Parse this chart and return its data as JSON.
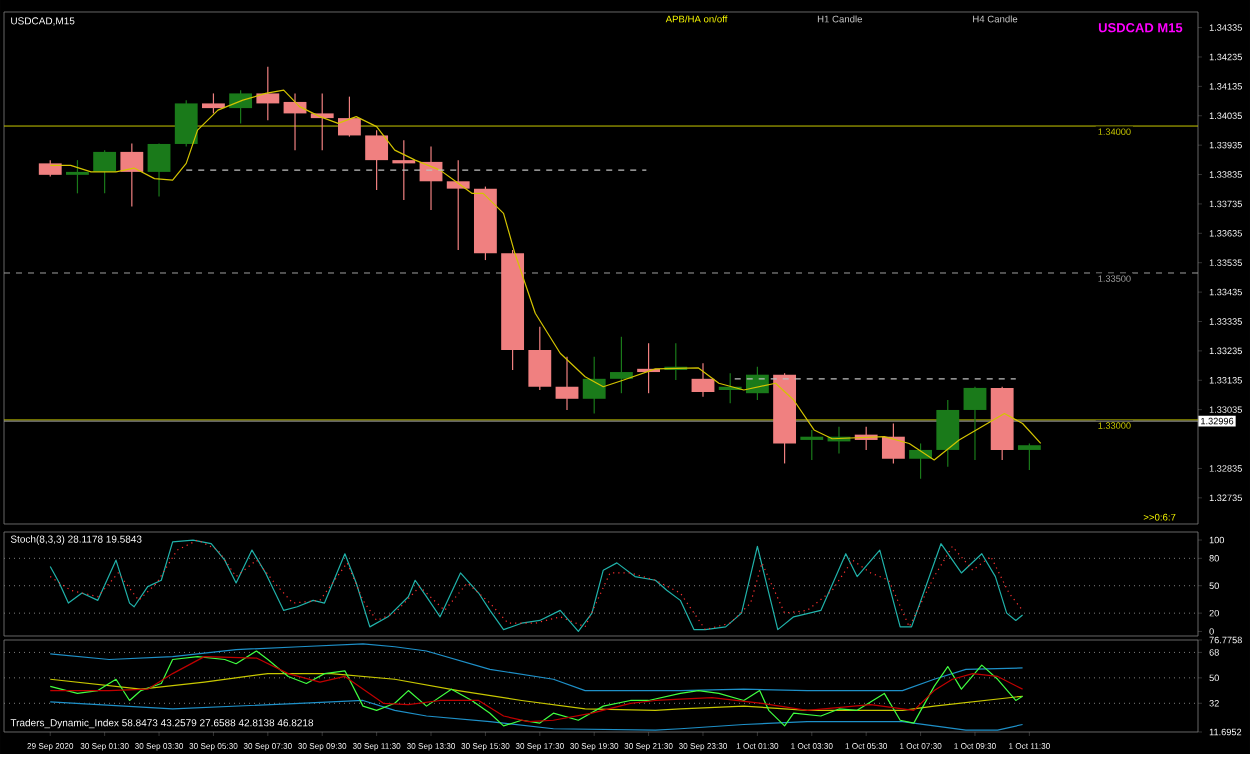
{
  "chart_data": [
    {
      "type": "candlestick",
      "title": "USDCAD,M15",
      "subtitle": "USDCAD M15",
      "annotations": [
        "APB/HA on/off",
        "H1 Candle",
        "H4 Candle",
        ">>0:6:7"
      ],
      "x": [
        "2020-09-29T23:30",
        "2020-09-30T00:30",
        "2020-09-30T01:30",
        "2020-09-30T02:30",
        "2020-09-30T03:30",
        "2020-09-30T04:30",
        "2020-09-30T05:30",
        "2020-09-30T06:30",
        "2020-09-30T07:30",
        "2020-09-30T08:30",
        "2020-09-30T09:30",
        "2020-09-30T10:30",
        "2020-09-30T11:30",
        "2020-09-30T12:30",
        "2020-09-30T13:30",
        "2020-09-30T14:30",
        "2020-09-30T15:30",
        "2020-09-30T16:30",
        "2020-09-30T17:30",
        "2020-09-30T18:30",
        "2020-09-30T19:30",
        "2020-09-30T20:30",
        "2020-09-30T21:30",
        "2020-09-30T22:30",
        "2020-09-30T23:30",
        "2020-10-01T00:30",
        "2020-10-01T01:30",
        "2020-10-01T02:30",
        "2020-10-01T03:30",
        "2020-10-01T04:30",
        "2020-10-01T05:30",
        "2020-10-01T06:30",
        "2020-10-01T07:30",
        "2020-10-01T08:30",
        "2020-10-01T09:30",
        "2020-10-01T10:30",
        "2020-10-01T11:30"
      ],
      "ohlc": [
        [
          1.33873,
          1.33884,
          1.33828,
          1.33834
        ],
        [
          1.33834,
          1.33884,
          1.33771,
          1.33844
        ],
        [
          1.33844,
          1.33918,
          1.33771,
          1.33912
        ],
        [
          1.33912,
          1.33941,
          1.33726,
          1.33844
        ],
        [
          1.33844,
          1.33941,
          1.3376,
          1.33939
        ],
        [
          1.33939,
          1.34088,
          1.3393,
          1.34077
        ],
        [
          1.34077,
          1.34111,
          1.34043,
          1.34061
        ],
        [
          1.34061,
          1.34122,
          1.34009,
          1.34111
        ],
        [
          1.34111,
          1.34202,
          1.3402,
          1.34077
        ],
        [
          1.34082,
          1.34111,
          1.33918,
          1.34043
        ],
        [
          1.34043,
          1.34111,
          1.33918,
          1.34027
        ],
        [
          1.34027,
          1.341,
          1.33964,
          1.33968
        ],
        [
          1.33968,
          1.33986,
          1.33782,
          1.33884
        ],
        [
          1.33884,
          1.33952,
          1.33748,
          1.33873
        ],
        [
          1.33878,
          1.3393,
          1.33714,
          1.33812
        ],
        [
          1.33812,
          1.33884,
          1.33578,
          1.33787
        ],
        [
          1.33787,
          1.33794,
          1.33544,
          1.33567
        ],
        [
          1.33567,
          1.33578,
          1.3317,
          1.33238
        ],
        [
          1.33238,
          1.33317,
          1.33102,
          1.33113
        ],
        [
          1.33113,
          1.33215,
          1.33034,
          1.33072
        ],
        [
          1.33072,
          1.33215,
          1.33022,
          1.3314
        ],
        [
          1.3314,
          1.33283,
          1.33091,
          1.33163
        ],
        [
          1.33174,
          1.33261,
          1.33091,
          1.33163
        ],
        [
          1.3317,
          1.33261,
          1.33136,
          1.33181
        ],
        [
          1.3314,
          1.33193,
          1.33079,
          1.33095
        ],
        [
          1.33102,
          1.33159,
          1.33057,
          1.33113
        ],
        [
          1.33091,
          1.33181,
          1.33068,
          1.33154
        ],
        [
          1.33154,
          1.33159,
          1.32852,
          1.3292
        ],
        [
          1.32932,
          1.32966,
          1.32864,
          1.32943
        ],
        [
          1.32927,
          1.32977,
          1.32886,
          1.32943
        ],
        [
          1.3295,
          1.32977,
          1.32898,
          1.32932
        ],
        [
          1.32943,
          1.32988,
          1.32852,
          1.32868
        ],
        [
          1.32868,
          1.3292,
          1.328,
          1.32898
        ],
        [
          1.32898,
          1.33068,
          1.32841,
          1.33034
        ],
        [
          1.33034,
          1.33113,
          1.32864,
          1.33109
        ],
        [
          1.33109,
          1.33113,
          1.32864,
          1.32898
        ],
        [
          1.32898,
          1.3292,
          1.3283,
          1.32914
        ]
      ],
      "colors": [
        "#f08080",
        "#1a7a1a",
        "#1a7a1a",
        "#f08080",
        "#1a7a1a",
        "#1a7a1a",
        "#f08080",
        "#1a7a1a",
        "#f08080",
        "#f08080",
        "#f08080",
        "#f08080",
        "#f08080",
        "#f08080",
        "#f08080",
        "#f08080",
        "#f08080",
        "#f08080",
        "#f08080",
        "#f08080",
        "#1a7a1a",
        "#1a7a1a",
        "#f08080",
        "#1a7a1a",
        "#f08080",
        "#1a7a1a",
        "#1a7a1a",
        "#f08080",
        "#1a7a1a",
        "#1a7a1a",
        "#f08080",
        "#f08080",
        "#1a7a1a",
        "#1a7a1a",
        "#1a7a1a",
        "#f08080",
        "#1a7a1a"
      ],
      "series": [
        {
          "type": "line",
          "color": "#d4c400",
          "x": [
            "2020-09-29T23:30",
            "2020-09-30T00:15",
            "2020-09-30T01:00",
            "2020-09-30T01:55",
            "2020-09-30T02:35",
            "2020-09-30T03:20",
            "2020-09-30T04:00",
            "2020-09-30T04:30",
            "2020-09-30T04:55",
            "2020-09-30T05:40",
            "2020-09-30T06:35",
            "2020-09-30T07:25",
            "2020-09-30T08:05",
            "2020-09-30T08:40",
            "2020-09-30T09:25",
            "2020-09-30T10:05",
            "2020-09-30T10:45",
            "2020-09-30T11:30",
            "2020-09-30T12:10",
            "2020-09-30T12:55",
            "2020-09-30T13:50",
            "2020-09-30T14:30",
            "2020-09-30T15:00",
            "2020-09-30T15:25",
            "2020-09-30T16:10",
            "2020-09-30T16:35",
            "2020-09-30T17:20",
            "2020-09-30T18:15",
            "2020-09-30T19:10",
            "2020-09-30T19:50",
            "2020-09-30T20:35",
            "2020-09-30T21:45",
            "2020-09-30T23:20",
            "2020-10-01T00:05",
            "2020-10-01T01:00",
            "2020-10-01T02:10",
            "2020-10-01T02:50",
            "2020-10-01T03:35",
            "2020-10-01T04:15",
            "2020-10-01T06:10",
            "2020-10-01T07:05",
            "2020-10-01T08:00",
            "2020-10-01T08:55",
            "2020-10-01T09:45",
            "2020-10-01T10:35",
            "2020-10-01T11:15",
            "2020-10-01T11:55"
          ],
          "values": [
            1.33866,
            1.33866,
            1.33844,
            1.33844,
            1.33857,
            1.33821,
            1.33816,
            1.33873,
            1.33986,
            1.34054,
            1.34088,
            1.34111,
            1.34122,
            1.34066,
            1.34032,
            1.34009,
            1.34032,
            1.33998,
            1.33918,
            1.33884,
            1.3385,
            1.33805,
            1.33771,
            1.33771,
            1.33703,
            1.33567,
            1.33363,
            1.33227,
            1.33147,
            1.33113,
            1.33136,
            1.33174,
            1.33177,
            1.33125,
            1.33102,
            1.33125,
            1.33068,
            1.32966,
            1.32936,
            1.32943,
            1.3292,
            1.32864,
            1.32932,
            1.32977,
            1.33022,
            1.32988,
            1.3292
          ]
        },
        {
          "type": "line",
          "color": "#c0c0c0",
          "line_style": "dashed",
          "x": [
            "2020-09-30T04:30",
            "2020-09-30T21:25"
          ],
          "values": [
            1.3385,
            1.3385
          ]
        },
        {
          "type": "line",
          "color": "#c0c0c0",
          "line_style": "dashed",
          "x": [
            "2020-10-01T00:40",
            "2020-10-01T11:00"
          ],
          "values": [
            1.3314,
            1.3314
          ]
        }
      ],
      "xlim": [
        "2020-09-29T21:48",
        "2020-10-01T17:42"
      ],
      "ylim": [
        1.32646,
        1.34388
      ],
      "yticks": [
        1.34335,
        1.34235,
        1.34135,
        1.34035,
        1.33935,
        1.33835,
        1.33735,
        1.33635,
        1.33535,
        1.33435,
        1.33335,
        1.33235,
        1.33135,
        1.33035,
        1.32835,
        1.32735
      ],
      "ref_lines": [
        {
          "axis": "y",
          "value": 1.34,
          "label": "1.34000",
          "color": "#c8c800"
        },
        {
          "axis": "y",
          "value": 1.335,
          "label": "1.33500",
          "color": "#a0a0a0",
          "line_style": "dashed"
        },
        {
          "axis": "y",
          "value": 1.33,
          "label": "1.33000",
          "color": "#c8c800"
        },
        {
          "axis": "y",
          "value": 1.32996,
          "label": "1.32996",
          "color": "#a0a0a0"
        }
      ],
      "tick_labels": "y"
    },
    {
      "type": "line",
      "title": "Stoch(8,3,3) 28.1178 19.5843",
      "series": [
        {
          "color": "#20b2aa",
          "x": [
            "2020-09-29T23:30",
            "2020-09-29T23:50",
            "2020-09-30T00:10",
            "2020-09-30T00:40",
            "2020-09-30T01:15",
            "2020-09-30T01:55",
            "2020-09-30T02:25",
            "2020-09-30T02:35",
            "2020-09-30T03:05",
            "2020-09-30T03:35",
            "2020-09-30T04:00",
            "2020-09-30T04:45",
            "2020-09-30T05:25",
            "2020-09-30T05:55",
            "2020-09-30T06:20",
            "2020-09-30T06:55",
            "2020-09-30T07:25",
            "2020-09-30T08:05",
            "2020-09-30T08:35",
            "2020-09-30T09:10",
            "2020-09-30T09:35",
            "2020-09-30T10:20",
            "2020-09-30T10:45",
            "2020-09-30T11:15",
            "2020-09-30T11:55",
            "2020-09-30T12:40",
            "2020-09-30T12:55",
            "2020-09-30T13:20",
            "2020-09-30T13:50",
            "2020-09-30T14:35",
            "2020-09-30T15:15",
            "2020-09-30T15:40",
            "2020-09-30T16:10",
            "2020-09-30T16:50",
            "2020-09-30T17:30",
            "2020-09-30T18:15",
            "2020-09-30T18:55",
            "2020-09-30T19:25",
            "2020-09-30T19:50",
            "2020-09-30T20:20",
            "2020-09-30T21:00",
            "2020-09-30T21:45",
            "2020-09-30T22:10",
            "2020-09-30T22:40",
            "2020-09-30T23:10",
            "2020-09-30T23:35",
            "2020-10-01T00:20",
            "2020-10-01T00:55",
            "2020-10-01T01:30",
            "2020-10-01T02:15",
            "2020-10-01T02:50",
            "2020-10-01T03:50",
            "2020-10-01T04:45",
            "2020-10-01T05:10",
            "2020-10-01T06:00",
            "2020-10-01T06:45",
            "2020-10-01T07:10",
            "2020-10-01T08:15",
            "2020-10-01T09:00",
            "2020-10-01T09:45",
            "2020-10-01T10:15",
            "2020-10-01T10:40",
            "2020-10-01T11:00",
            "2020-10-01T11:15"
          ],
          "values": [
            71,
            53,
            31,
            42,
            34,
            78,
            31,
            27,
            49,
            56,
            98,
            100,
            96,
            78,
            53,
            89,
            64,
            23,
            27,
            34,
            31,
            85,
            53,
            5,
            16,
            38,
            56,
            38,
            16,
            64,
            42,
            23,
            2,
            9,
            12,
            23,
            0,
            20,
            67,
            75,
            60,
            56,
            45,
            34,
            2,
            2,
            5,
            20,
            93,
            2,
            16,
            23,
            85,
            60,
            89,
            5,
            5,
            96,
            64,
            85,
            60,
            20,
            12,
            18
          ]
        },
        {
          "color": "#ff3030",
          "line_style": "dotted",
          "x": [
            "2020-09-29T23:30",
            "2020-09-30T00:15",
            "2020-09-30T01:15",
            "2020-09-30T02:00",
            "2020-09-30T02:45",
            "2020-09-30T03:25",
            "2020-09-30T04:10",
            "2020-09-30T04:55",
            "2020-09-30T05:40",
            "2020-09-30T06:20",
            "2020-09-30T07:05",
            "2020-09-30T07:45",
            "2020-09-30T08:25",
            "2020-09-30T09:25",
            "2020-09-30T10:25",
            "2020-09-30T11:00",
            "2020-09-30T11:30",
            "2020-09-30T12:10",
            "2020-09-30T13:05",
            "2020-09-30T14:00",
            "2020-09-30T14:50",
            "2020-09-30T15:40",
            "2020-09-30T16:20",
            "2020-09-30T17:20",
            "2020-09-30T18:15",
            "2020-09-30T19:10",
            "2020-09-30T20:05",
            "2020-09-30T20:50",
            "2020-09-30T21:45",
            "2020-09-30T22:40",
            "2020-09-30T23:35",
            "2020-10-01T00:30",
            "2020-10-01T01:15",
            "2020-10-01T01:40",
            "2020-10-01T02:30",
            "2020-10-01T03:20",
            "2020-10-01T04:15",
            "2020-10-01T05:00",
            "2020-10-01T05:40",
            "2020-10-01T06:20",
            "2020-10-01T07:05",
            "2020-10-01T08:00",
            "2020-10-01T08:40",
            "2020-10-01T09:25",
            "2020-10-01T10:05",
            "2020-10-01T10:45",
            "2020-10-01T11:15"
          ],
          "values": [
            60,
            45,
            38,
            64,
            34,
            53,
            89,
            100,
            89,
            60,
            78,
            53,
            31,
            34,
            75,
            34,
            12,
            20,
            49,
            23,
            53,
            31,
            9,
            9,
            16,
            5,
            64,
            64,
            56,
            42,
            2,
            9,
            31,
            75,
            20,
            23,
            45,
            78,
            64,
            56,
            5,
            60,
            93,
            67,
            82,
            42,
            23
          ]
        }
      ],
      "xlim": [
        "2020-09-29T21:48",
        "2020-10-01T17:42"
      ],
      "ylim": [
        -5,
        108.8
      ],
      "yticks": [
        0,
        20,
        50,
        80,
        100
      ],
      "ref_lines": [
        {
          "axis": "y",
          "value": 80,
          "color": "#808080",
          "line_style": "dotted"
        },
        {
          "axis": "y",
          "value": 50,
          "color": "#808080",
          "line_style": "dotted"
        },
        {
          "axis": "y",
          "value": 20,
          "color": "#808080",
          "line_style": "dotted"
        }
      ],
      "tick_labels": "y"
    },
    {
      "type": "line",
      "title": "Traders_Dynamic_Index 58.8473 43.2579 27.6588 42.8138 46.8218",
      "series": [
        {
          "color": "#1e90c8",
          "x": [
            "2020-09-29T23:30",
            "2020-09-30T01:40",
            "2020-09-30T04:00",
            "2020-09-30T06:20",
            "2020-09-30T08:40",
            "2020-09-30T11:00",
            "2020-09-30T12:10",
            "2020-09-30T13:20",
            "2020-09-30T15:40",
            "2020-09-30T18:00",
            "2020-09-30T19:10",
            "2020-09-30T21:45",
            "2020-09-30T22:40",
            "2020-10-01T01:00",
            "2020-10-01T03:20",
            "2020-10-01T06:50",
            "2020-10-01T08:00",
            "2020-10-01T09:10",
            "2020-10-01T11:15"
          ],
          "values": [
            67,
            63,
            65,
            70,
            72,
            74,
            72,
            69,
            56,
            49,
            41,
            41,
            41,
            42,
            41,
            41,
            49,
            56,
            57
          ]
        },
        {
          "color": "#1e90c8",
          "x": [
            "2020-09-29T23:30",
            "2020-09-30T04:00",
            "2020-09-30T08:40",
            "2020-09-30T11:00",
            "2020-09-30T12:10",
            "2020-09-30T13:20",
            "2020-09-30T15:40",
            "2020-09-30T18:00",
            "2020-09-30T21:45",
            "2020-09-30T22:40",
            "2020-10-01T01:00",
            "2020-10-01T03:20",
            "2020-10-01T06:50",
            "2020-10-01T09:10",
            "2020-10-01T10:20",
            "2020-10-01T11:15"
          ],
          "values": [
            33,
            28,
            32,
            34,
            27,
            23,
            19,
            14,
            13,
            14,
            17,
            19,
            19,
            13,
            13,
            17
          ]
        },
        {
          "color": "#c8c800",
          "x": [
            "2020-09-29T23:30",
            "2020-09-30T02:50",
            "2020-09-30T05:10",
            "2020-09-30T07:30",
            "2020-09-30T09:50",
            "2020-09-30T12:10",
            "2020-09-30T14:30",
            "2020-09-30T16:50",
            "2020-09-30T19:10",
            "2020-09-30T21:45",
            "2020-09-30T22:40",
            "2020-10-01T01:00",
            "2020-10-01T03:20",
            "2020-10-01T06:50",
            "2020-10-01T08:00",
            "2020-10-01T11:15"
          ],
          "values": [
            49,
            42,
            47,
            53,
            53,
            49,
            41,
            34,
            28,
            27,
            28,
            30,
            27,
            27,
            30,
            37
          ]
        },
        {
          "color": "#40ff40",
          "x": [
            "2020-09-29T23:30",
            "2020-09-30T00:30",
            "2020-09-30T01:15",
            "2020-09-30T01:55",
            "2020-09-30T02:25",
            "2020-09-30T02:50",
            "2020-09-30T03:35",
            "2020-09-30T04:00",
            "2020-09-30T04:55",
            "2020-09-30T05:55",
            "2020-09-30T06:20",
            "2020-09-30T07:05",
            "2020-09-30T07:30",
            "2020-09-30T08:15",
            "2020-09-30T08:55",
            "2020-09-30T09:35",
            "2020-09-30T10:20",
            "2020-09-30T11:00",
            "2020-09-30T11:30",
            "2020-09-30T12:10",
            "2020-09-30T12:40",
            "2020-09-30T13:20",
            "2020-09-30T14:15",
            "2020-09-30T15:00",
            "2020-09-30T15:40",
            "2020-09-30T16:10",
            "2020-09-30T16:50",
            "2020-09-30T17:30",
            "2020-09-30T18:00",
            "2020-09-30T18:55",
            "2020-09-30T19:50",
            "2020-09-30T20:50",
            "2020-09-30T21:30",
            "2020-09-30T22:40",
            "2020-09-30T23:20",
            "2020-10-01T00:05",
            "2020-10-01T01:00",
            "2020-10-01T01:35",
            "2020-10-01T01:55",
            "2020-10-01T02:30",
            "2020-10-01T02:50",
            "2020-10-01T03:50",
            "2020-10-01T04:30",
            "2020-10-01T05:10",
            "2020-10-01T06:10",
            "2020-10-01T06:45",
            "2020-10-01T07:15",
            "2020-10-01T08:00",
            "2020-10-01T08:30",
            "2020-10-01T09:00",
            "2020-10-01T09:45",
            "2020-10-01T10:20",
            "2020-10-01T11:00",
            "2020-10-01T11:15"
          ],
          "values": [
            44,
            39,
            41,
            49,
            34,
            41,
            46,
            63,
            65,
            63,
            60,
            69,
            63,
            51,
            46,
            53,
            55,
            30,
            27,
            32,
            41,
            30,
            42,
            34,
            25,
            16,
            20,
            18,
            25,
            20,
            30,
            34,
            34,
            39,
            41,
            39,
            34,
            41,
            27,
            16,
            25,
            23,
            28,
            27,
            39,
            20,
            18,
            44,
            58,
            42,
            59,
            49,
            34,
            37
          ]
        },
        {
          "color": "#c00000",
          "x": [
            "2020-09-29T23:30",
            "2020-09-30T01:40",
            "2020-09-30T03:05",
            "2020-09-30T04:00",
            "2020-09-30T05:10",
            "2020-09-30T07:05",
            "2020-09-30T08:15",
            "2020-09-30T09:25",
            "2020-09-30T10:20",
            "2020-09-30T11:45",
            "2020-09-30T12:40",
            "2020-09-30T13:50",
            "2020-09-30T15:15",
            "2020-09-30T16:10",
            "2020-09-30T17:05",
            "2020-09-30T18:00",
            "2020-09-30T19:25",
            "2020-09-30T20:50",
            "2020-09-30T21:45",
            "2020-09-30T22:40",
            "2020-09-30T23:50",
            "2020-10-01T01:40",
            "2020-10-01T03:20",
            "2020-10-01T05:40",
            "2020-10-01T07:15",
            "2020-10-01T08:00",
            "2020-10-01T08:40",
            "2020-10-01T09:25",
            "2020-10-01T10:20",
            "2020-10-01T11:15"
          ],
          "values": [
            41,
            41,
            42,
            53,
            65,
            64,
            53,
            47,
            51,
            32,
            31,
            34,
            34,
            23,
            19,
            20,
            25,
            32,
            34,
            35,
            36,
            32,
            27,
            31,
            27,
            41,
            49,
            53,
            51,
            42
          ]
        }
      ],
      "xlim": [
        "2020-09-29T21:48",
        "2020-10-01T17:42"
      ],
      "ylim": [
        11.6952,
        76.7758
      ],
      "yticks": [
        11.6952,
        32,
        50,
        68,
        76.7758
      ],
      "xticks": [
        {
          "value": "2020-09-29T23:30",
          "label": "29 Sep 2020"
        },
        {
          "value": "2020-09-30T01:30",
          "label": "30 Sep 01:30"
        },
        {
          "value": "2020-09-30T03:30",
          "label": "30 Sep 03:30"
        },
        {
          "value": "2020-09-30T05:30",
          "label": "30 Sep 05:30"
        },
        {
          "value": "2020-09-30T07:30",
          "label": "30 Sep 07:30"
        },
        {
          "value": "2020-09-30T09:30",
          "label": "30 Sep 09:30"
        },
        {
          "value": "2020-09-30T11:30",
          "label": "30 Sep 11:30"
        },
        {
          "value": "2020-09-30T13:30",
          "label": "30 Sep 13:30"
        },
        {
          "value": "2020-09-30T15:30",
          "label": "30 Sep 15:30"
        },
        {
          "value": "2020-09-30T17:30",
          "label": "30 Sep 17:30"
        },
        {
          "value": "2020-09-30T19:30",
          "label": "30 Sep 19:30"
        },
        {
          "value": "2020-09-30T21:30",
          "label": "30 Sep 21:30"
        },
        {
          "value": "2020-09-30T23:30",
          "label": "30 Sep 23:30"
        },
        {
          "value": "2020-10-01T01:30",
          "label": "1 Oct 01:30"
        },
        {
          "value": "2020-10-01T03:30",
          "label": "1 Oct 03:30"
        },
        {
          "value": "2020-10-01T05:30",
          "label": "1 Oct 05:30"
        },
        {
          "value": "2020-10-01T07:30",
          "label": "1 Oct 07:30"
        },
        {
          "value": "2020-10-01T09:30",
          "label": "1 Oct 09:30"
        },
        {
          "value": "2020-10-01T11:30",
          "label": "1 Oct 11:30"
        }
      ],
      "ref_lines": [
        {
          "axis": "y",
          "value": 68,
          "color": "#808080",
          "line_style": "dotted"
        },
        {
          "axis": "y",
          "value": 50,
          "color": "#808080",
          "line_style": "dotted"
        },
        {
          "axis": "y",
          "value": 32,
          "color": "#808080",
          "line_style": "dotted"
        }
      ]
    }
  ]
}
